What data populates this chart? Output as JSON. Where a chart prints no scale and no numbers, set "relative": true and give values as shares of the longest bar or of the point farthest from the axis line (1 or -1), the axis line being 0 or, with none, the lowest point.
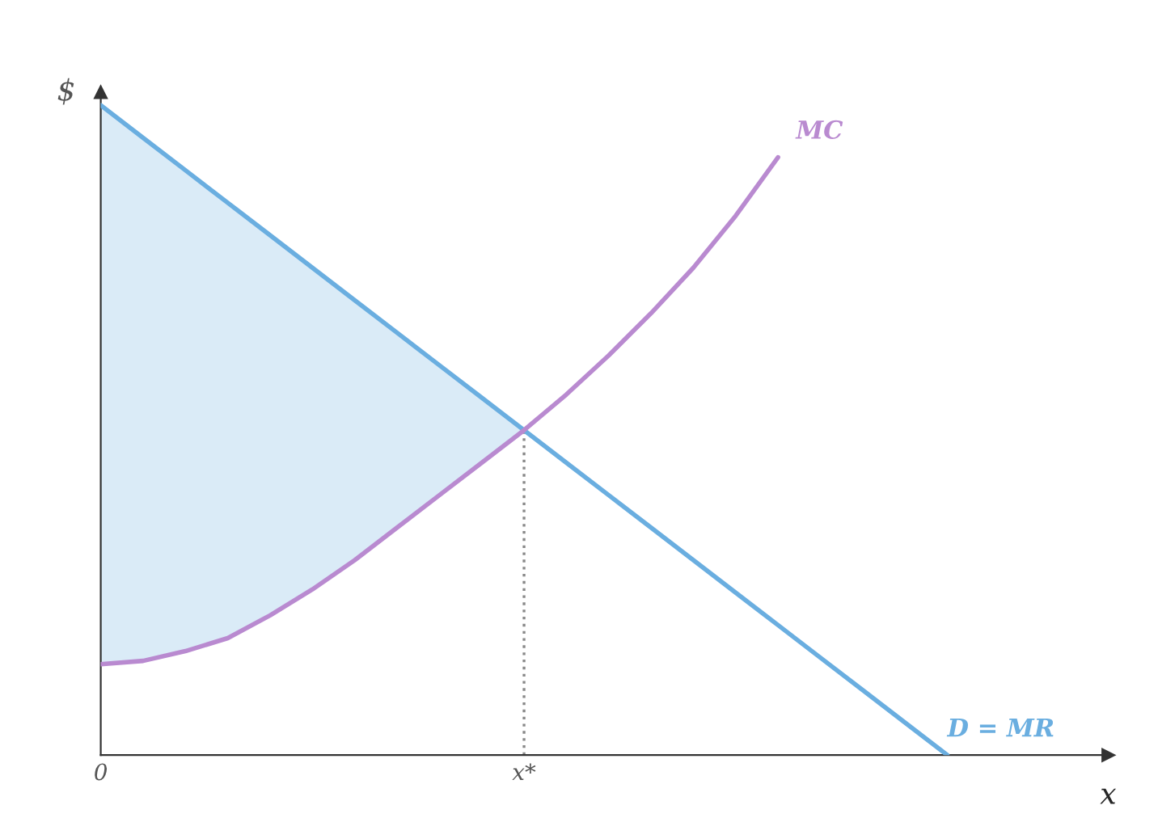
{
  "chart_data": {
    "type": "line",
    "relative": true,
    "xlabel": "x",
    "ylabel": "$",
    "categories": [
      "0",
      null,
      null,
      null,
      null,
      null,
      null,
      null,
      null,
      null,
      "x*",
      null,
      null,
      null,
      null,
      null,
      null,
      null,
      null,
      null,
      null,
      null,
      null,
      null
    ],
    "series": [
      {
        "name": "D = MR",
        "color": "#6aaee0",
        "values": [
          1,
          0.95,
          0.9,
          0.85,
          0.8,
          0.75,
          0.7,
          0.65,
          0.6,
          0.55,
          0.5,
          0.45,
          0.4,
          0.35,
          0.3,
          0.25,
          0.2,
          0.15,
          0.1,
          0.05,
          0,
          null,
          null,
          null
        ],
        "lower": [
          0.14,
          0.145,
          0.16,
          0.18,
          0.215,
          0.255,
          0.3,
          0.35,
          0.4,
          0.45,
          0.5,
          null,
          null,
          null,
          null,
          null,
          null,
          null,
          null,
          null,
          null,
          null,
          null,
          null
        ],
        "upper": [
          1,
          0.95,
          0.9,
          0.85,
          0.8,
          0.75,
          0.7,
          0.65,
          0.6,
          0.55,
          0.5,
          null,
          null,
          null,
          null,
          null,
          null,
          null,
          null,
          null,
          null,
          null,
          null,
          null
        ]
      },
      {
        "name": "MC",
        "color": "#b98ad0",
        "values": [
          0.14,
          0.145,
          0.16,
          0.18,
          0.215,
          0.255,
          0.3,
          0.35,
          0.4,
          0.45,
          0.5,
          0.555,
          0.615,
          0.68,
          0.75,
          0.83,
          0.92,
          null,
          null,
          null,
          null,
          null,
          null,
          null
        ]
      }
    ],
    "ref_lines": [
      {
        "axis": "x",
        "value": "x*",
        "label": null,
        "line_style": "dotted",
        "color": "#888888"
      }
    ],
    "grid": false,
    "legend": false
  }
}
